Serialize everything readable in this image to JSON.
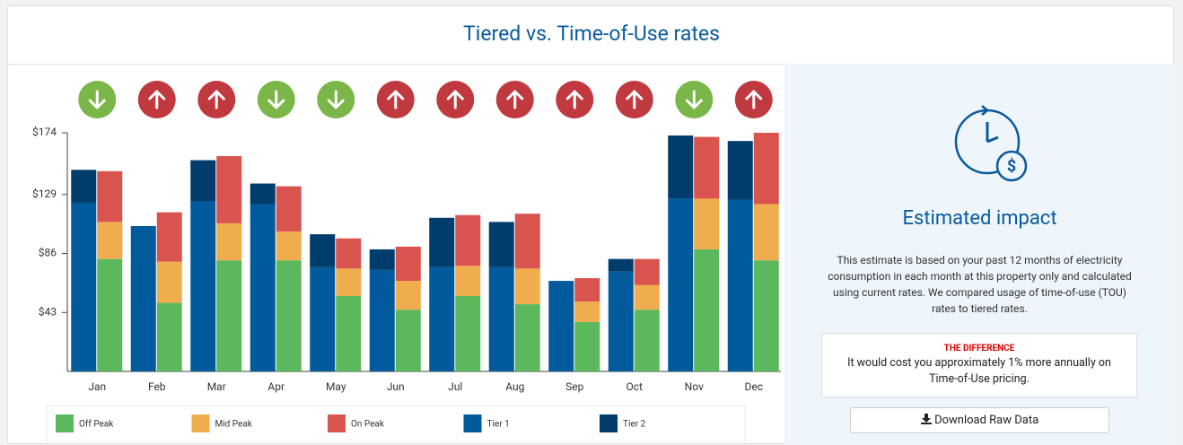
{
  "chart_data": {
    "type": "stacked-bar-pairs",
    "title": "Tiered vs. Time-of-Use rates",
    "categories": [
      "Jan",
      "Feb",
      "Mar",
      "Apr",
      "May",
      "Jun",
      "Jul",
      "Aug",
      "Sep",
      "Oct",
      "Nov",
      "Dec"
    ],
    "indicators": [
      "down",
      "up",
      "up",
      "down",
      "down",
      "up",
      "up",
      "up",
      "up",
      "up",
      "down",
      "up"
    ],
    "series": [
      {
        "name": "Off Peak",
        "color": "#5cb85c",
        "stack": "tou",
        "values": [
          82,
          50,
          81,
          81,
          55,
          45,
          55,
          49,
          36,
          45,
          89,
          81
        ]
      },
      {
        "name": "Mid Peak",
        "color": "#f0ad4e",
        "stack": "tou",
        "values": [
          27,
          30,
          27,
          21,
          20,
          21,
          22,
          26,
          15,
          18,
          37,
          41
        ]
      },
      {
        "name": "On Peak",
        "color": "#d9534f",
        "stack": "tou",
        "values": [
          37,
          36,
          49,
          33,
          22,
          25,
          37,
          40,
          17,
          19,
          45,
          52
        ]
      },
      {
        "name": "Tier 1",
        "color": "#005a9c",
        "stack": "tiered",
        "values": [
          123,
          106,
          124,
          122,
          76,
          74,
          76,
          76,
          66,
          73,
          126,
          125
        ]
      },
      {
        "name": "Tier 2",
        "color": "#003c6c",
        "stack": "tiered",
        "values": [
          24,
          0,
          30,
          15,
          24,
          15,
          36,
          33,
          0,
          9,
          46,
          43
        ]
      }
    ],
    "ylim": [
      0,
      174
    ],
    "yticks": [
      {
        "value": 43,
        "label": "$43"
      },
      {
        "value": 86,
        "label": "$86"
      },
      {
        "value": 129,
        "label": "$129"
      },
      {
        "value": 174,
        "label": "$174"
      }
    ],
    "grid": false
  },
  "panel": {
    "title": "Estimated impact",
    "description": "This estimate is based on your past 12 months of electricity consumption in each month at this property only and calculated using current rates. We compared usage of time-of-use (TOU) rates to tiered rates.",
    "difference_label": "THE DIFFERENCE",
    "difference_text": "It would cost you approximately 1% more annually on Time-of-Use pricing.",
    "button": "Download Raw Data"
  }
}
